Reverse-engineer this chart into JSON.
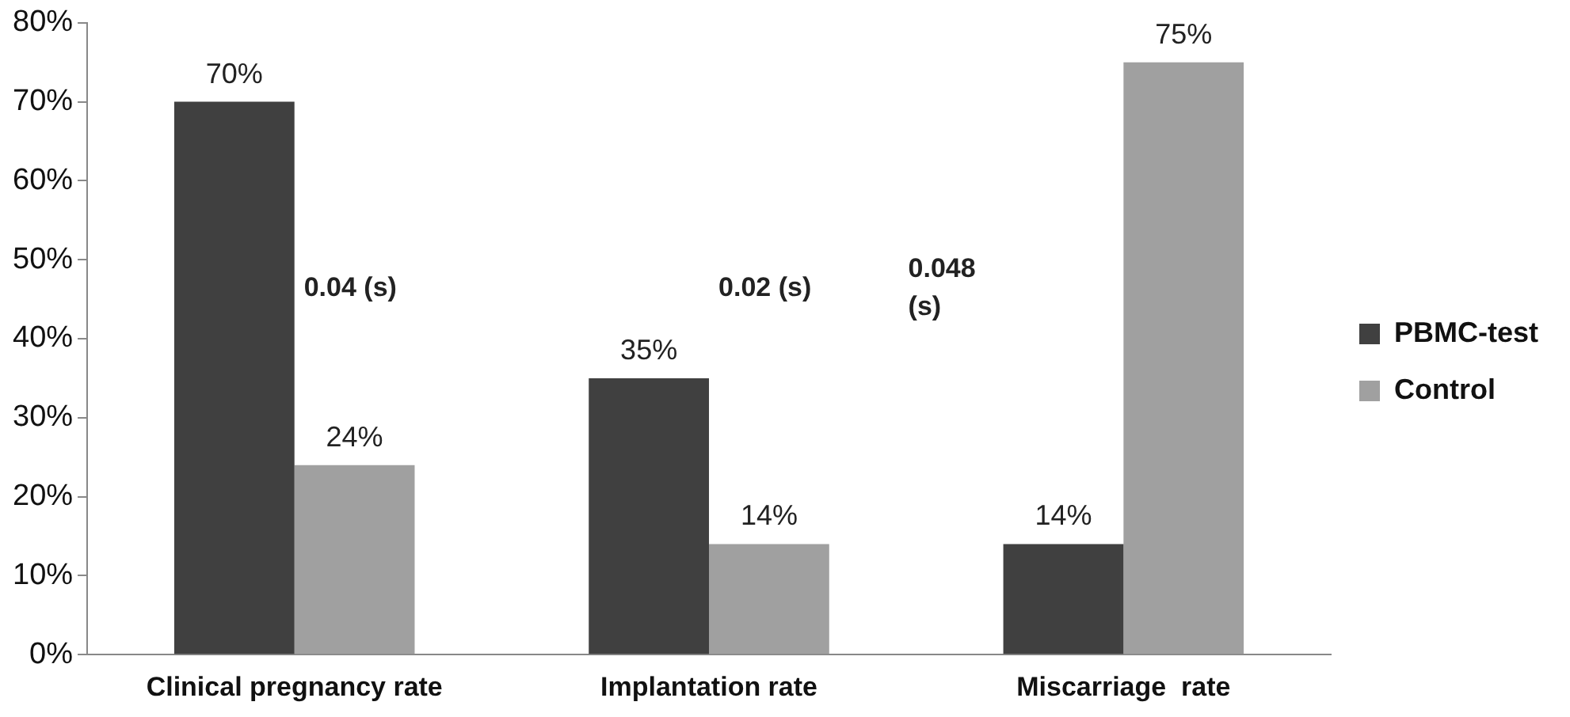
{
  "chart_data": {
    "type": "bar",
    "categories": [
      "Clinical pregnancy rate",
      "Implantation rate",
      "Miscarriage  rate"
    ],
    "series": [
      {
        "name": "PBMC-test",
        "color": "#404040",
        "values": [
          70,
          35,
          14
        ],
        "value_labels": [
          "70%",
          "35%",
          "14%"
        ]
      },
      {
        "name": "Control",
        "color": "#a0a0a0",
        "values": [
          24,
          14,
          75
        ],
        "value_labels": [
          "24%",
          "14%",
          "75%"
        ]
      }
    ],
    "ylim": [
      0,
      80
    ],
    "yticks": [
      {
        "value": 0,
        "label": "0%"
      },
      {
        "value": 10,
        "label": "10%"
      },
      {
        "value": 20,
        "label": "20%"
      },
      {
        "value": 30,
        "label": "30%"
      },
      {
        "value": 40,
        "label": "40%"
      },
      {
        "value": 50,
        "label": "50%"
      },
      {
        "value": 60,
        "label": "60%"
      },
      {
        "value": 70,
        "label": "70%"
      },
      {
        "value": 80,
        "label": "80%"
      }
    ],
    "grid": false,
    "legend": "right",
    "annotations": [
      "0.04 (s)",
      "0.02 (s)",
      "0.048 (s)"
    ]
  }
}
